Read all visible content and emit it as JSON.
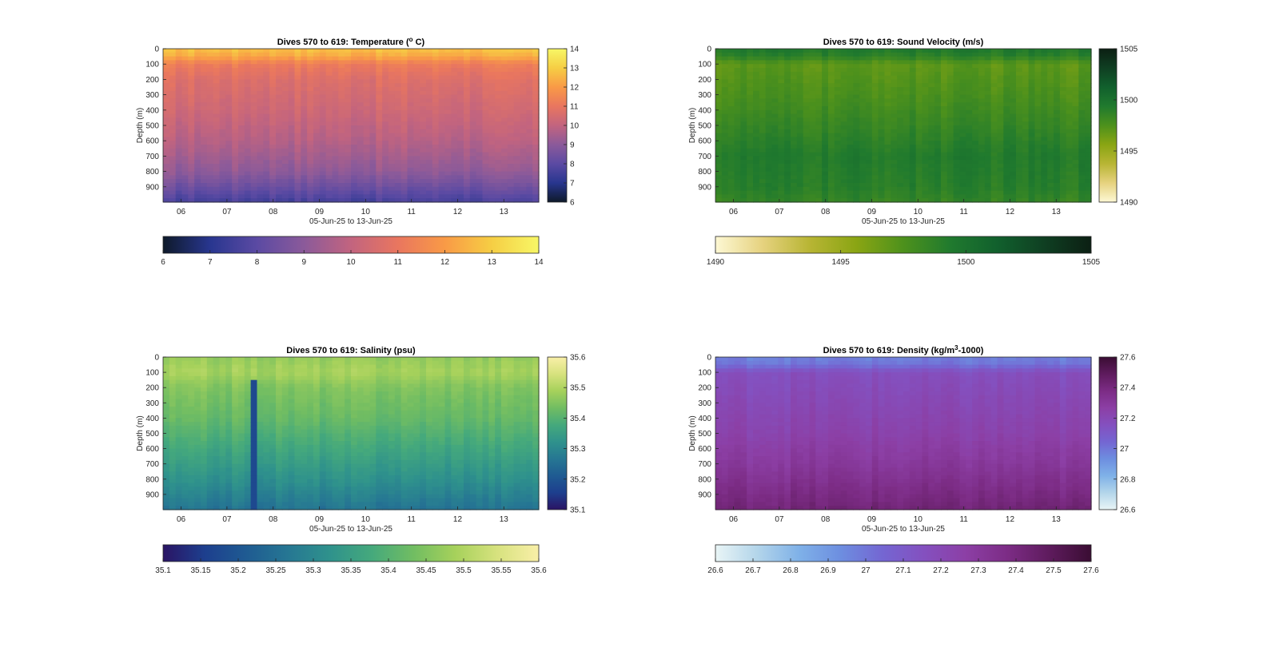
{
  "chart_data": [
    {
      "type": "heatmap",
      "title": "Dives 570 to 619: Temperature (",
      "title_sup": "o",
      "title_tail": " C)",
      "ylabel": "Depth (m)",
      "xlabel": "05-Jun-25 to 13-Jun-25",
      "x_ticks": [
        "06",
        "07",
        "08",
        "09",
        "10",
        "11",
        "12",
        "13"
      ],
      "y_ticks": [
        "0",
        "100",
        "200",
        "300",
        "400",
        "500",
        "600",
        "700",
        "800",
        "900"
      ],
      "ylim": [
        0,
        1000
      ],
      "clim": [
        6,
        14
      ],
      "colorbar_ticks": [
        "6",
        "7",
        "8",
        "9",
        "10",
        "11",
        "12",
        "13",
        "14"
      ],
      "bottom_colorbar_ticks": [
        "6",
        "7",
        "8",
        "9",
        "10",
        "11",
        "12",
        "13",
        "14"
      ],
      "colormap": [
        "#0e1a2a",
        "#28368f",
        "#5b4aa3",
        "#8b5a9a",
        "#c2647f",
        "#e9765f",
        "#f99a46",
        "#f6ce44",
        "#f7f766"
      ],
      "profile": [
        {
          "depth": 0,
          "value": 12.8
        },
        {
          "depth": 50,
          "value": 12.3
        },
        {
          "depth": 100,
          "value": 11.2
        },
        {
          "depth": 200,
          "value": 10.7
        },
        {
          "depth": 400,
          "value": 10.3
        },
        {
          "depth": 600,
          "value": 9.8
        },
        {
          "depth": 800,
          "value": 9.1
        },
        {
          "depth": 900,
          "value": 8.4
        },
        {
          "depth": 1000,
          "value": 7.6
        }
      ]
    },
    {
      "type": "heatmap",
      "title": "Dives 570 to 619: Sound Velocity (m/s)",
      "title_sup": "",
      "title_tail": "",
      "ylabel": "Depth (m)",
      "xlabel": "05-Jun-25 to 13-Jun-25",
      "x_ticks": [
        "06",
        "07",
        "08",
        "09",
        "10",
        "11",
        "12",
        "13"
      ],
      "y_ticks": [
        "0",
        "100",
        "200",
        "300",
        "400",
        "500",
        "600",
        "700",
        "800",
        "900"
      ],
      "ylim": [
        0,
        1000
      ],
      "clim": [
        1490,
        1505
      ],
      "colorbar_ticks": [
        "1490",
        "1495",
        "1500",
        "1505"
      ],
      "bottom_colorbar_ticks": [
        "1490",
        "1495",
        "1500",
        "1505"
      ],
      "colormap": [
        "#fdf8d4",
        "#e6d27f",
        "#b8b534",
        "#8aa513",
        "#4d911c",
        "#207a2e",
        "#11602d",
        "#0f3f22",
        "#0c1f13"
      ],
      "profile": [
        {
          "depth": 0,
          "value": 1499.5
        },
        {
          "depth": 50,
          "value": 1498.8
        },
        {
          "depth": 100,
          "value": 1497.0
        },
        {
          "depth": 300,
          "value": 1497.6
        },
        {
          "depth": 500,
          "value": 1498.4
        },
        {
          "depth": 700,
          "value": 1499.3
        },
        {
          "depth": 900,
          "value": 1499.0
        },
        {
          "depth": 1000,
          "value": 1498.5
        }
      ]
    },
    {
      "type": "heatmap",
      "title": "Dives 570 to 619: Salinity (psu)",
      "title_sup": "",
      "title_tail": "",
      "ylabel": "Depth (m)",
      "xlabel": "05-Jun-25 to 13-Jun-25",
      "x_ticks": [
        "06",
        "07",
        "08",
        "09",
        "10",
        "11",
        "12",
        "13"
      ],
      "y_ticks": [
        "0",
        "100",
        "200",
        "300",
        "400",
        "500",
        "600",
        "700",
        "800",
        "900"
      ],
      "ylim": [
        0,
        1000
      ],
      "clim": [
        35.1,
        35.6
      ],
      "colorbar_ticks": [
        "35.1",
        "35.2",
        "35.3",
        "35.4",
        "35.5",
        "35.6"
      ],
      "bottom_colorbar_ticks": [
        "35.1",
        "35.15",
        "35.2",
        "35.25",
        "35.3",
        "35.35",
        "35.4",
        "35.45",
        "35.5",
        "35.55",
        "35.6"
      ],
      "colormap": [
        "#2a1464",
        "#1d3f8e",
        "#1f5b92",
        "#267793",
        "#2f928c",
        "#45a97c",
        "#71bd62",
        "#a6d15b",
        "#d7e27e",
        "#f9efa8"
      ],
      "profile": [
        {
          "depth": 0,
          "value": 35.47
        },
        {
          "depth": 100,
          "value": 35.49
        },
        {
          "depth": 200,
          "value": 35.45
        },
        {
          "depth": 400,
          "value": 35.42
        },
        {
          "depth": 600,
          "value": 35.37
        },
        {
          "depth": 800,
          "value": 35.32
        },
        {
          "depth": 1000,
          "value": 35.26
        }
      ]
    },
    {
      "type": "heatmap",
      "title": "Dives 570 to 619: Density (kg/m",
      "title_sup": "3",
      "title_tail": "-1000)",
      "ylabel": "Depth (m)",
      "xlabel": "05-Jun-25 to 13-Jun-25",
      "x_ticks": [
        "06",
        "07",
        "08",
        "09",
        "10",
        "11",
        "12",
        "13"
      ],
      "y_ticks": [
        "0",
        "100",
        "200",
        "300",
        "400",
        "500",
        "600",
        "700",
        "800",
        "900"
      ],
      "ylim": [
        0,
        1000
      ],
      "clim": [
        26.6,
        27.6
      ],
      "colorbar_ticks": [
        "26.6",
        "26.8",
        "27",
        "27.2",
        "27.4",
        "27.6"
      ],
      "bottom_colorbar_ticks": [
        "26.6",
        "26.7",
        "26.8",
        "26.9",
        "27",
        "27.1",
        "27.2",
        "27.3",
        "27.4",
        "27.5",
        "27.6"
      ],
      "colormap": [
        "#e9f5f6",
        "#b3d5ea",
        "#7fb1e8",
        "#6d8ee0",
        "#7466d2",
        "#8450bf",
        "#8c3fa5",
        "#7c2c85",
        "#5e1b5d",
        "#3a0d33"
      ],
      "profile": [
        {
          "depth": 0,
          "value": 26.97
        },
        {
          "depth": 50,
          "value": 27.0
        },
        {
          "depth": 100,
          "value": 27.16
        },
        {
          "depth": 300,
          "value": 27.2
        },
        {
          "depth": 500,
          "value": 27.24
        },
        {
          "depth": 700,
          "value": 27.3
        },
        {
          "depth": 900,
          "value": 27.38
        },
        {
          "depth": 1000,
          "value": 27.42
        }
      ]
    }
  ]
}
